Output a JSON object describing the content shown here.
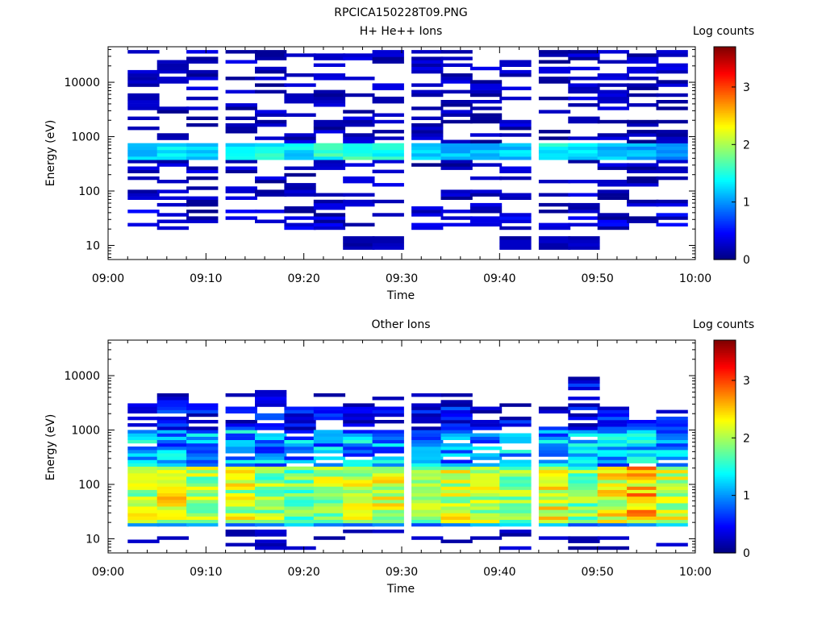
{
  "figure_title": "RPCICA150228T09.PNG",
  "colormap": [
    "#00007f",
    "#0000ff",
    "#007fff",
    "#00ffff",
    "#7fff7f",
    "#ffff00",
    "#ff7f00",
    "#ff0000",
    "#7f0000"
  ],
  "chart_data": [
    {
      "type": "heatmap",
      "title": "H+ He++ Ions",
      "xlabel": "Time",
      "ylabel": "Energy (eV)",
      "x_tick_labels": [
        "09:00",
        "09:10",
        "09:20",
        "09:30",
        "09:40",
        "09:50",
        "10:00"
      ],
      "xlim": [
        "09:00",
        "10:00"
      ],
      "y_scale": "log",
      "ylim": [
        5.5,
        45000
      ],
      "y_tick_labels": [
        "10",
        "100",
        "1000",
        "10000"
      ],
      "colorbar_label": "Log counts",
      "colorbar_tick_labels": [
        "0",
        "1",
        "2",
        "3"
      ],
      "colorbar_range": [
        0,
        3.7
      ],
      "time_bins": [
        "09:02",
        "09:05",
        "09:08",
        "09:12",
        "09:15",
        "09:18",
        "09:21",
        "09:24",
        "09:27",
        "09:31",
        "09:34",
        "09:37",
        "09:40",
        "09:44",
        "09:47",
        "09:50",
        "09:53",
        "09:56"
      ],
      "energy_bands_eV": [
        {
          "range": [
            400,
            800
          ],
          "description": "main band",
          "log_counts_by_time_bin": [
            1.2,
            1.3,
            1.2,
            1.3,
            1.4,
            1.3,
            1.5,
            1.6,
            1.5,
            1.3,
            1.2,
            1.1,
            1.2,
            1.4,
            1.3,
            1.2,
            1.1,
            1.0
          ]
        },
        {
          "range": [
            200,
            3000
          ],
          "description": "sparse structure",
          "log_counts_typical": 0.3
        },
        {
          "range": [
            3000,
            40000
          ],
          "description": "sparse high energy",
          "log_counts_typical": 0.2
        },
        {
          "range": [
            20,
            45
          ],
          "description": "low energy patches",
          "log_counts_typical": 0.3
        },
        {
          "range": [
            8,
            14
          ],
          "description": "isolated counts near 09:25 and 09:41-09:47",
          "log_counts_typical": 0.2
        }
      ]
    },
    {
      "type": "heatmap",
      "title": "Other Ions",
      "xlabel": "Time",
      "ylabel": "Energy (eV)",
      "x_tick_labels": [
        "09:00",
        "09:10",
        "09:20",
        "09:30",
        "09:40",
        "09:50",
        "10:00"
      ],
      "xlim": [
        "09:00",
        "10:00"
      ],
      "y_scale": "log",
      "ylim": [
        5.5,
        45000
      ],
      "y_tick_labels": [
        "10",
        "100",
        "1000",
        "10000"
      ],
      "colorbar_label": "Log counts",
      "colorbar_tick_labels": [
        "0",
        "1",
        "2",
        "3"
      ],
      "colorbar_range": [
        0,
        3.7
      ],
      "time_bins": [
        "09:02",
        "09:05",
        "09:08",
        "09:12",
        "09:15",
        "09:18",
        "09:21",
        "09:24",
        "09:27",
        "09:31",
        "09:34",
        "09:37",
        "09:40",
        "09:44",
        "09:47",
        "09:50",
        "09:53",
        "09:56"
      ],
      "upper_energy_edge_eV": [
        3000,
        4000,
        3000,
        3500,
        5000,
        2800,
        2800,
        2800,
        2800,
        3000,
        3000,
        2800,
        2000,
        2000,
        7000,
        2200,
        1800,
        1800
      ],
      "energy_bands_eV": [
        {
          "range": [
            20,
            200
          ],
          "description": "bright band",
          "log_counts_by_time_bin": [
            2.2,
            2.3,
            2.1,
            2.2,
            2.0,
            1.9,
            2.1,
            2.2,
            2.2,
            2.0,
            2.2,
            2.1,
            2.0,
            2.3,
            1.9,
            2.3,
            2.6,
            2.2
          ]
        },
        {
          "range": [
            200,
            1000
          ],
          "description": "medium",
          "log_counts_typical": 1.2
        },
        {
          "range": [
            1000,
            3000
          ],
          "description": "upper fringe",
          "log_counts_typical": 0.5
        },
        {
          "range": [
            16,
            20
          ],
          "description": "lower edge",
          "log_counts_typical": 1.0
        },
        {
          "range": [
            6,
            15
          ],
          "description": "isolated low-energy counts",
          "log_counts_typical": 0.2
        }
      ]
    }
  ]
}
